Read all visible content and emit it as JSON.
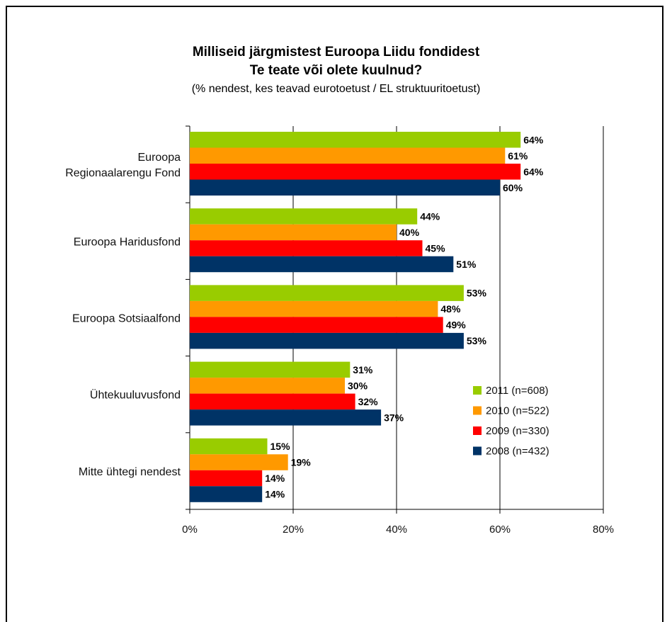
{
  "chart_data": {
    "type": "bar",
    "orientation": "horizontal",
    "title": "Milliseid järgmistest Euroopa Liidu fondidest",
    "title_line2": "Te teate või olete kuulnud?",
    "subtitle": "(% nendest, kes teavad eurotoetust / EL struktuuritoetust)",
    "categories": [
      [
        "Euroopa",
        "Regionaalarengu Fond"
      ],
      [
        "Euroopa Haridusfond"
      ],
      [
        "Euroopa Sotsiaalfond"
      ],
      [
        "Ühtekuuluvusfond"
      ],
      [
        "Mitte ühtegi nendest"
      ]
    ],
    "series": [
      {
        "name": "2011 (n=608)",
        "color": "#99cc00",
        "values": [
          64,
          44,
          53,
          31,
          15
        ],
        "labels": [
          "64%",
          "44%",
          "53%",
          "31%",
          "15%"
        ]
      },
      {
        "name": "2010 (n=522)",
        "color": "#ff9900",
        "values": [
          61,
          40,
          48,
          30,
          19
        ],
        "labels": [
          "61%",
          "40%",
          "48%",
          "30%",
          "19%"
        ]
      },
      {
        "name": "2009 (n=330)",
        "color": "#ff0000",
        "values": [
          64,
          45,
          49,
          32,
          14
        ],
        "labels": [
          "64%",
          "45%",
          "49%",
          "32%",
          "14%"
        ]
      },
      {
        "name": "2008 (n=432)",
        "color": "#003366",
        "values": [
          60,
          51,
          53,
          37,
          14
        ],
        "labels": [
          "60%",
          "51%",
          "53%",
          "37%",
          "14%"
        ]
      }
    ],
    "xlim": [
      0,
      80
    ],
    "xticks": [
      "0%",
      "20%",
      "40%",
      "60%",
      "80%"
    ],
    "grid": true,
    "legend_position": "lower-right"
  }
}
